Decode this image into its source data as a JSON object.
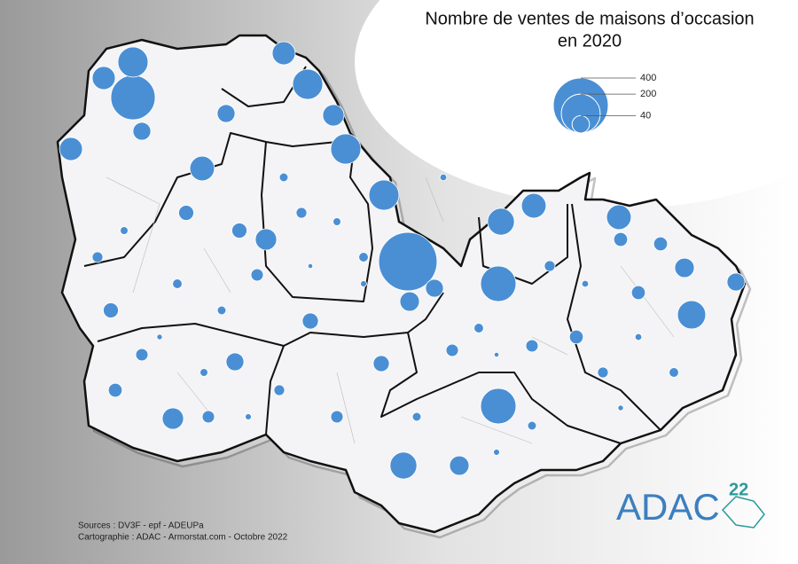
{
  "title": [
    "Nombre de ventes de maisons d’occasion",
    "en 2020"
  ],
  "legend": {
    "values": [
      400,
      200,
      40
    ]
  },
  "bubbles": {
    "values": [
      450,
      260,
      120,
      166,
      166,
      120,
      120,
      70,
      80,
      80,
      80,
      105,
      70,
      120,
      60,
      95,
      60,
      70,
      95,
      60,
      42,
      50,
      50,
      42,
      42,
      42,
      42,
      50,
      34,
      34,
      20,
      30,
      30,
      30,
      25,
      25,
      25,
      25,
      25,
      20,
      20,
      20,
      20,
      20,
      15,
      15,
      15,
      15,
      15,
      12,
      12,
      12,
      12,
      10,
      10,
      10,
      10,
      8,
      8,
      8,
      6,
      6,
      6,
      5,
      5,
      5,
      4,
      4,
      3,
      3
    ]
  },
  "sources": [
    "Sources : DV3F - epf - ADEUPa",
    "Cartographie : ADAC - Armorstat.com - Octobre 2022"
  ],
  "logo": {
    "text": "ADAC",
    "number": 22
  }
}
